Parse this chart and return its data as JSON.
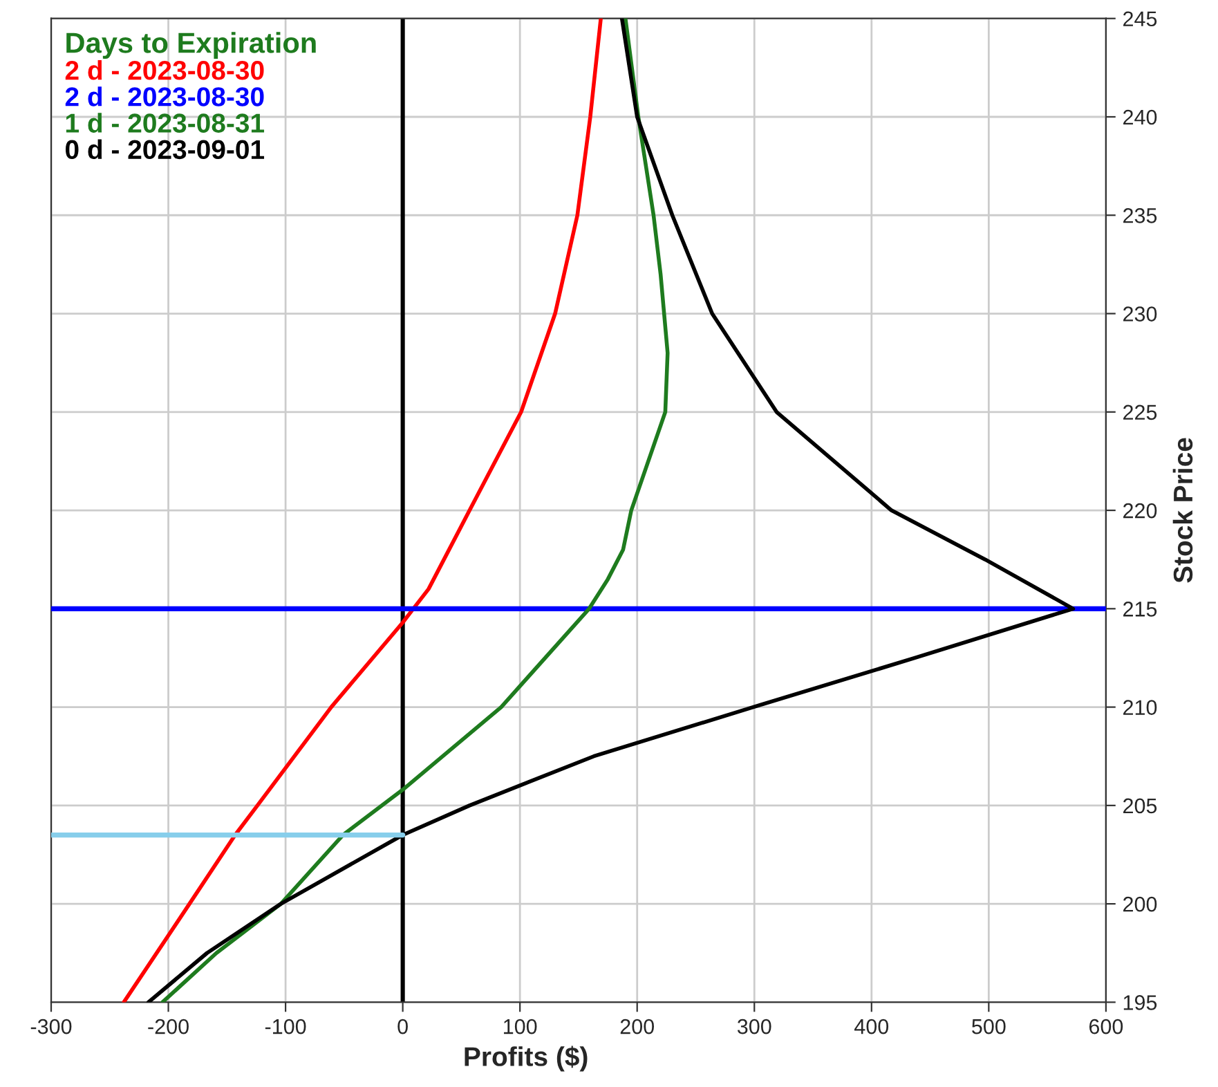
{
  "chart_data": {
    "type": "line",
    "xlabel": "Profits ($)",
    "ylabel": "Stock Price",
    "legend_title": "Days to Expiration",
    "xlim": [
      -300,
      600
    ],
    "xticks": [
      -300,
      -200,
      -100,
      0,
      100,
      200,
      300,
      400,
      500,
      600
    ],
    "ylim": [
      195,
      245
    ],
    "yticks": [
      195,
      200,
      205,
      210,
      215,
      220,
      225,
      230,
      235,
      240,
      245
    ],
    "grid": true,
    "legend": "top left",
    "marker": "none",
    "line_style": "solid",
    "ref_lines": [
      {
        "axis": "x",
        "value": 0,
        "color": "#000000"
      }
    ],
    "series": [
      {
        "name": "2 d - 2023-08-30",
        "color": "#ff0000",
        "x": [
          -238,
          -182,
          -143,
          -124,
          -61,
          0,
          9,
          22,
          57,
          101,
          130,
          149,
          160,
          169
        ],
        "values": [
          195,
          200,
          203.5,
          205,
          210,
          214.3,
          215,
          216,
          220,
          225,
          230,
          235,
          240,
          245
        ]
      },
      {
        "name": "2 d - 2023-08-30",
        "color": "#0000ff",
        "x": [
          -300,
          600
        ],
        "values": [
          215,
          215
        ]
      },
      {
        "name": "1 d - 2023-08-31",
        "color": "#1e7b1e",
        "x": [
          -205,
          -159,
          -104,
          -51,
          0,
          84,
          159,
          175,
          188,
          195,
          224,
          226,
          220,
          214,
          201,
          190
        ],
        "values": [
          195,
          197.5,
          200,
          203.5,
          205.8,
          210,
          215,
          216.5,
          218,
          220,
          225,
          228,
          232,
          235,
          240,
          245
        ]
      },
      {
        "name": "0 d - 2023-09-01",
        "color": "#000000",
        "x": [
          -217,
          -167,
          -104,
          0,
          57,
          163,
          299,
          437,
          572,
          497,
          417,
          319,
          264,
          230,
          200,
          187
        ],
        "values": [
          195,
          197.5,
          200,
          203.5,
          205,
          207.5,
          210,
          212.5,
          215,
          217.5,
          220,
          225,
          230,
          235,
          240,
          245
        ]
      },
      {
        "color": "#87ceeb",
        "x": [
          -300,
          0
        ],
        "values": [
          203.5,
          203.5
        ]
      }
    ]
  }
}
